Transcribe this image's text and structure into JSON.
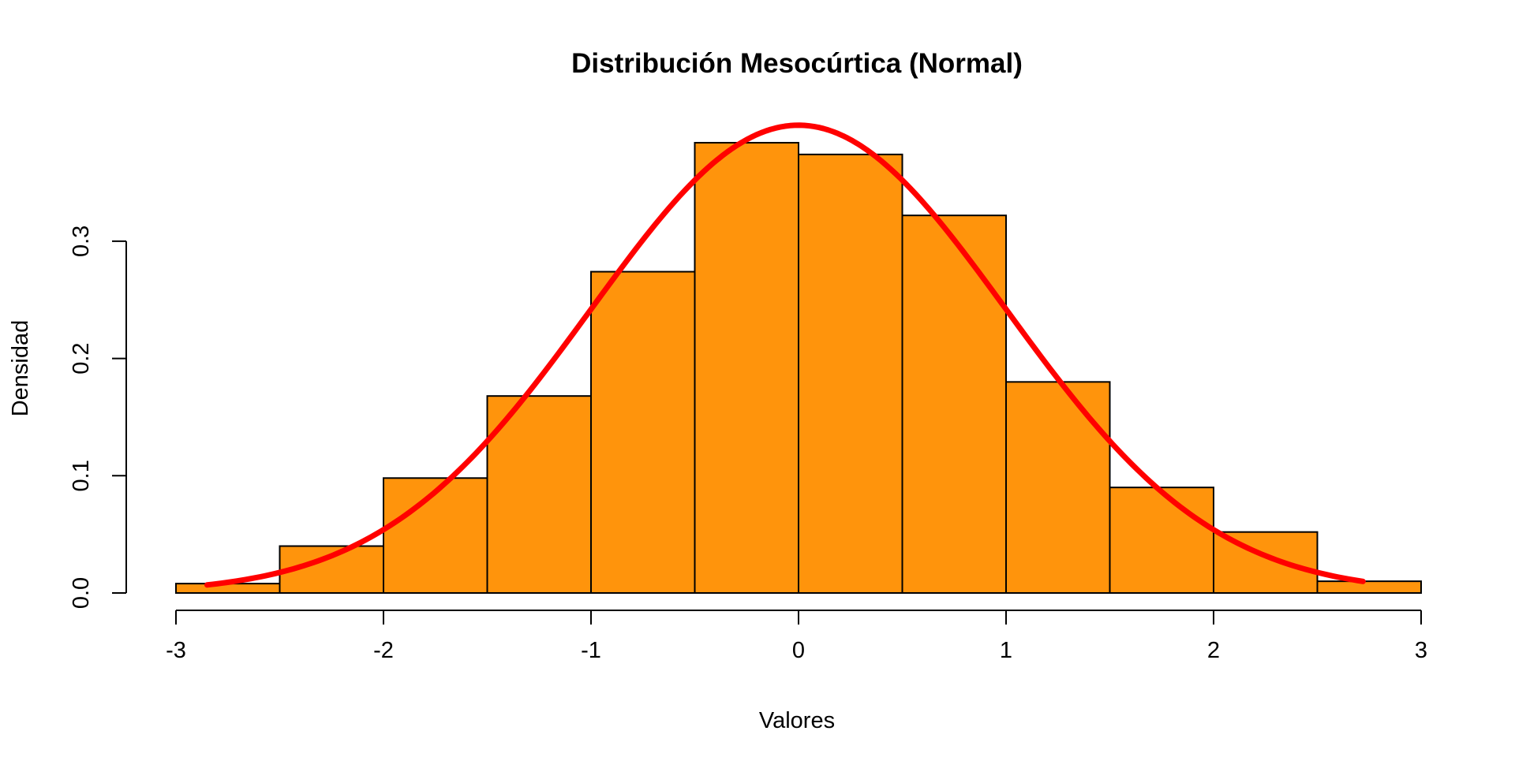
{
  "chart_data": {
    "type": "bar",
    "title": "Distribución Mesocúrtica (Normal)",
    "xlabel": "Valores",
    "ylabel": "Densidad",
    "xlim": [
      -3,
      3
    ],
    "ylim": [
      0,
      0.4
    ],
    "x_ticks": [
      -3,
      -2,
      -1,
      0,
      1,
      2,
      3
    ],
    "x_tick_labels": [
      "-3",
      "-2",
      "-1",
      "0",
      "1",
      "2",
      "3"
    ],
    "y_ticks": [
      0.0,
      0.1,
      0.2,
      0.3
    ],
    "y_tick_labels": [
      "0.0",
      "0.1",
      "0.2",
      "0.3"
    ],
    "grid": false,
    "legend": "none",
    "histogram": {
      "bin_edges": [
        -3,
        -2.5,
        -2,
        -1.5,
        -1,
        -0.5,
        0,
        0.5,
        1,
        1.5,
        2,
        2.5,
        3
      ],
      "densities": [
        0.008,
        0.04,
        0.098,
        0.168,
        0.274,
        0.384,
        0.374,
        0.322,
        0.18,
        0.09,
        0.052,
        0.01
      ],
      "fill_color": "#FF940C",
      "border_color": "#000000"
    },
    "curve": {
      "type": "normal-density",
      "mean": 0,
      "sd": 1,
      "x_range": [
        -2.85,
        2.72
      ],
      "color": "#FF0000"
    }
  }
}
